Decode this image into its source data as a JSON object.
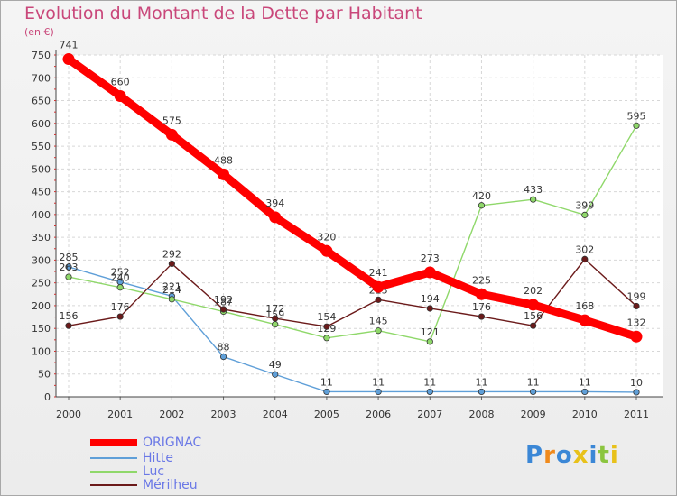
{
  "chart_data": {
    "type": "line",
    "title": "Evolution du Montant de la Dette par Habitant",
    "subtitle": "(en €)",
    "x": [
      "2000",
      "2001",
      "2002",
      "2003",
      "2004",
      "2005",
      "2006",
      "2007",
      "2008",
      "2009",
      "2010",
      "2011"
    ],
    "ylim": [
      0,
      750
    ],
    "yticks": [
      0,
      50,
      100,
      150,
      200,
      250,
      300,
      350,
      400,
      450,
      500,
      550,
      600,
      650,
      700,
      750
    ],
    "grid": true,
    "legend_position": "bottom-left",
    "series": [
      {
        "name": "ORIGNAC",
        "color": "#ff0000",
        "values": [
          741,
          660,
          575,
          488,
          394,
          320,
          241,
          273,
          225,
          202,
          168,
          132
        ]
      },
      {
        "name": "Hitte",
        "color": "#5f9fd8",
        "values": [
          285,
          252,
          221,
          88,
          49,
          11,
          11,
          11,
          11,
          11,
          11,
          10
        ]
      },
      {
        "name": "Luc",
        "color": "#8fd86a",
        "values": [
          263,
          240,
          214,
          187,
          159,
          129,
          145,
          121,
          420,
          433,
          399,
          595
        ]
      },
      {
        "name": "Mérilheu",
        "color": "#6b1a1a",
        "values": [
          156,
          176,
          292,
          192,
          172,
          154,
          213,
          194,
          176,
          156,
          302,
          199
        ]
      }
    ]
  },
  "logo": {
    "letters": [
      "P",
      "r",
      "o",
      "x",
      "i",
      "t",
      "i"
    ],
    "colors": [
      "#3b87d6",
      "#f08a1c",
      "#3b87d6",
      "#e8c11a",
      "#3b87d6",
      "#8bc53f",
      "#e8c11a"
    ]
  }
}
